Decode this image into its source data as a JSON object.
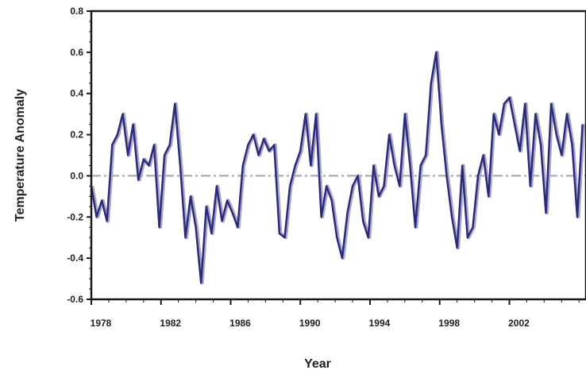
{
  "chart_data": {
    "type": "line",
    "title": "",
    "xlabel": "Year",
    "ylabel": "Temperature Anomaly",
    "xlim": [
      1978,
      2006.4
    ],
    "ylim": [
      -0.6,
      0.8
    ],
    "x_ticks": [
      1978,
      1982,
      1986,
      1990,
      1994,
      1998,
      2002
    ],
    "x_tick_labels": [
      "1978",
      "1982",
      "1986",
      "1990",
      "1994",
      "1998",
      "2002"
    ],
    "y_ticks": [
      -0.6,
      -0.4,
      -0.2,
      0.0,
      0.2,
      0.4,
      0.6,
      0.8
    ],
    "y_tick_labels": [
      "-0.6",
      "-0.4",
      "-0.2",
      "0.0",
      "0.2",
      "0.4",
      "0.6",
      "0.8"
    ],
    "grid": false,
    "reference_line": {
      "y": 0.0,
      "style": "dash-dot",
      "color": "#9aa6b0"
    },
    "series": [
      {
        "color": "#2b2a7a",
        "highlight_color": "#a8a8c8",
        "x": [
          1978.0,
          1978.3,
          1978.6,
          1978.9,
          1979.2,
          1979.5,
          1979.8,
          1980.1,
          1980.4,
          1980.7,
          1981.0,
          1981.3,
          1981.6,
          1981.9,
          1982.2,
          1982.5,
          1982.8,
          1983.1,
          1983.4,
          1983.7,
          1984.0,
          1984.3,
          1984.6,
          1984.9,
          1985.2,
          1985.5,
          1985.8,
          1986.1,
          1986.4,
          1986.7,
          1987.0,
          1987.3,
          1987.6,
          1987.9,
          1988.2,
          1988.5,
          1988.8,
          1989.1,
          1989.4,
          1989.7,
          1990.0,
          1990.3,
          1990.6,
          1990.9,
          1991.2,
          1991.5,
          1991.8,
          1992.1,
          1992.4,
          1992.7,
          1993.0,
          1993.3,
          1993.6,
          1993.9,
          1994.2,
          1994.5,
          1994.8,
          1995.1,
          1995.4,
          1995.7,
          1996.0,
          1996.3,
          1996.6,
          1996.9,
          1997.2,
          1997.5,
          1997.8,
          1998.1,
          1998.4,
          1998.7,
          1999.0,
          1999.3,
          1999.6,
          1999.9,
          2000.2,
          2000.5,
          2000.8,
          2001.1,
          2001.4,
          2001.7,
          2002.0,
          2002.3,
          2002.6,
          2002.9,
          2003.2,
          2003.5,
          2003.8,
          2004.1,
          2004.4,
          2004.7,
          2005.0,
          2005.3,
          2005.6,
          2005.9,
          2006.2
        ],
        "values": [
          -0.05,
          -0.2,
          -0.12,
          -0.22,
          0.15,
          0.2,
          0.3,
          0.1,
          0.25,
          -0.02,
          0.08,
          0.05,
          0.15,
          -0.25,
          0.1,
          0.15,
          0.35,
          0.05,
          -0.3,
          -0.1,
          -0.25,
          -0.52,
          -0.15,
          -0.28,
          -0.05,
          -0.22,
          -0.12,
          -0.18,
          -0.25,
          0.05,
          0.15,
          0.2,
          0.1,
          0.18,
          0.12,
          0.15,
          -0.28,
          -0.3,
          -0.05,
          0.05,
          0.12,
          0.3,
          0.05,
          0.3,
          -0.2,
          -0.05,
          -0.12,
          -0.3,
          -0.4,
          -0.18,
          -0.05,
          0.0,
          -0.22,
          -0.3,
          0.05,
          -0.1,
          -0.05,
          0.2,
          0.05,
          -0.05,
          0.3,
          0.05,
          -0.25,
          0.05,
          0.1,
          0.45,
          0.6,
          0.25,
          0.0,
          -0.2,
          -0.35,
          0.05,
          -0.3,
          -0.25,
          0.0,
          0.1,
          -0.1,
          0.3,
          0.2,
          0.35,
          0.38,
          0.25,
          0.12,
          0.35,
          -0.05,
          0.3,
          0.15,
          -0.18,
          0.35,
          0.2,
          0.1,
          0.3,
          0.15,
          -0.2,
          0.25
        ]
      }
    ]
  }
}
